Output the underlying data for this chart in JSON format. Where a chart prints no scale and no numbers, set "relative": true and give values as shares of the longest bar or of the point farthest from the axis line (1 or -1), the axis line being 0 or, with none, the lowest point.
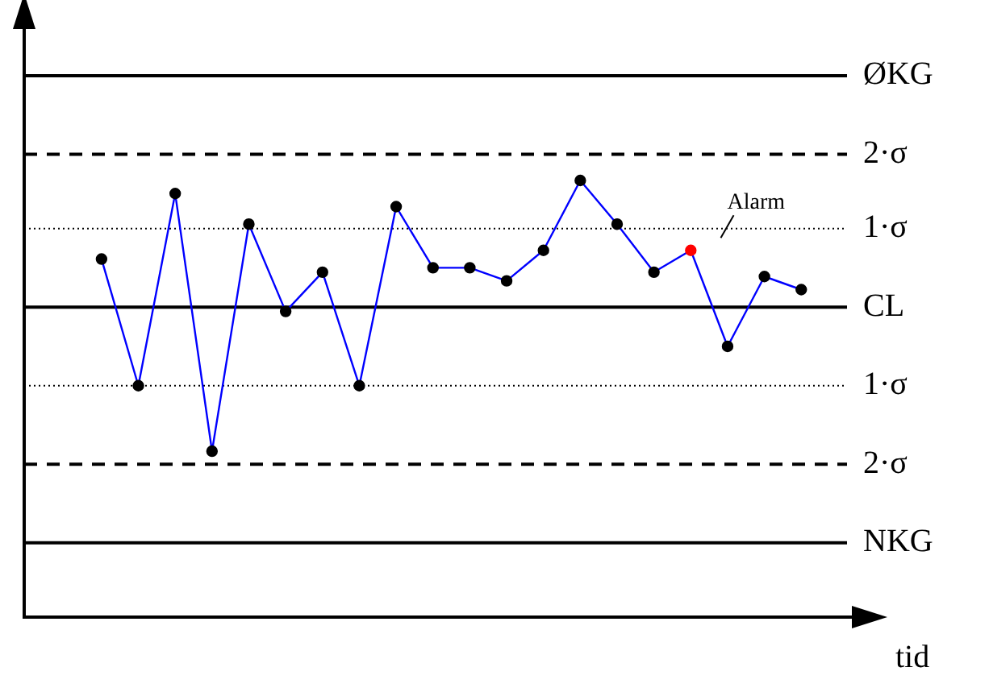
{
  "chart_data": {
    "type": "line",
    "relative": true,
    "xlabel": "tid",
    "categories": [
      null,
      null,
      null,
      null,
      null,
      null,
      null,
      null,
      null,
      null,
      null,
      null,
      null,
      null,
      null,
      null,
      null,
      null,
      null,
      null
    ],
    "series": [
      {
        "color": "#0000ff",
        "colors": [
          "#000000",
          "#000000",
          "#000000",
          "#000000",
          "#000000",
          "#000000",
          "#000000",
          "#000000",
          "#000000",
          "#000000",
          "#000000",
          "#000000",
          "#000000",
          "#000000",
          "#000000",
          "#000000",
          "#ff0000",
          "#000000",
          "#000000",
          "#000000"
        ],
        "values": [
          0.82,
          0.53,
          0.97,
          0.38,
          0.9,
          0.7,
          0.79,
          0.53,
          0.94,
          0.8,
          0.8,
          0.77,
          0.84,
          1.0,
          0.9,
          0.79,
          0.84,
          0.62,
          0.78,
          0.75
        ]
      }
    ],
    "ref_lines": [
      {
        "axis": "y",
        "value": 1.24,
        "label": "ØKG",
        "color": "#000000",
        "line_style": "solid"
      },
      {
        "axis": "y",
        "value": 1.06,
        "label": "2·σ",
        "color": "#000000",
        "line_style": "dashed"
      },
      {
        "axis": "y",
        "value": 0.89,
        "label": "1·σ",
        "color": "#000000",
        "line_style": "dotted"
      },
      {
        "axis": "y",
        "value": 0.71,
        "label": "CL",
        "color": "#000000",
        "line_style": "solid"
      },
      {
        "axis": "y",
        "value": 0.53,
        "label": "1·σ",
        "color": "#000000",
        "line_style": "dotted"
      },
      {
        "axis": "y",
        "value": 0.35,
        "label": "2·σ",
        "color": "#000000",
        "line_style": "dashed"
      },
      {
        "axis": "y",
        "value": 0.17,
        "label": "NKG",
        "color": "#000000",
        "line_style": "solid"
      }
    ],
    "annotations": [
      "Alarm"
    ],
    "grid": false,
    "legend": false,
    "marker": "circle",
    "line_style": "solid"
  }
}
